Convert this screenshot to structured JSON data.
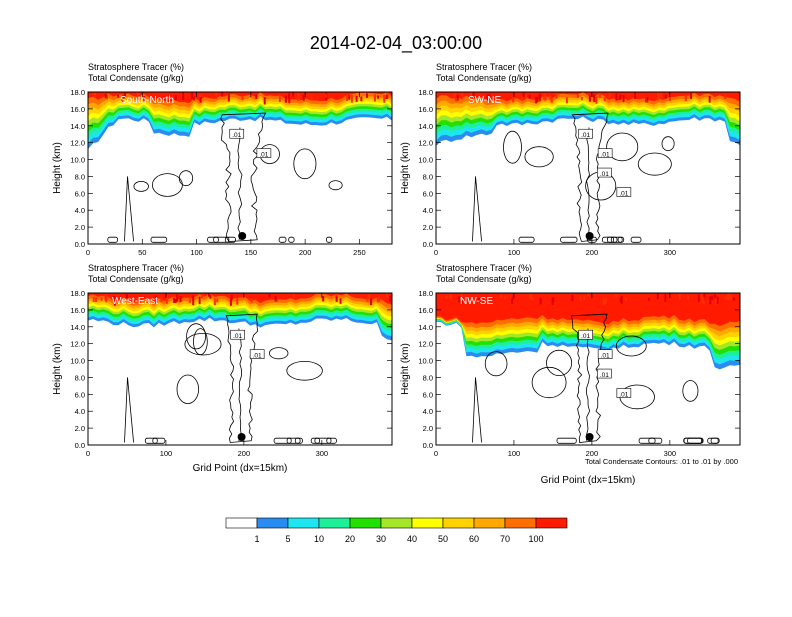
{
  "page": {
    "title": "2014-02-04_03:00:00",
    "footnote": "Total Condensate Contours: .01 to .01 by .000"
  },
  "colors": {
    "levels": [
      "#ffffff",
      "#2a8cf0",
      "#1ee6f0",
      "#1ef09a",
      "#22e000",
      "#a6e628",
      "#ffff00",
      "#ffd200",
      "#ffa800",
      "#ff6e00",
      "#ff1a00"
    ],
    "contour": "#000000",
    "frame": "#000000"
  },
  "chart_data": [
    {
      "type": "heatmap",
      "panel_label": "South-North",
      "subtitle1": "Stratosphere Tracer   (%)",
      "subtitle2": "Total Condensate   (g/kg)",
      "ylabel": "Height (km)",
      "xlabel": "",
      "xlim": [
        0,
        280
      ],
      "ylim": [
        0,
        18
      ],
      "xticks": [
        0,
        50,
        100,
        150,
        200,
        250
      ],
      "yticks": [
        "0.0",
        "2.0",
        "4.0",
        "6.0",
        "8.0",
        "10.0",
        "12.0",
        "14.0",
        "16.0",
        "18.0"
      ],
      "marker_x": 142,
      "contour_labels": [
        ".01",
        ".01"
      ],
      "approx_tracer_base_km": 14.5,
      "approx_tracer_top_km": 18
    },
    {
      "type": "heatmap",
      "panel_label": "SW-NE",
      "subtitle1": "Stratosphere Tracer   (%)",
      "subtitle2": "Total Condensate   (g/kg)",
      "ylabel": "Height (km)",
      "xlabel": "",
      "xlim": [
        0,
        390
      ],
      "ylim": [
        0,
        18
      ],
      "xticks": [
        0,
        100,
        200,
        300
      ],
      "yticks": [
        "0.0",
        "2.0",
        "4.0",
        "6.0",
        "8.0",
        "10.0",
        "12.0",
        "14.0",
        "16.0",
        "18.0"
      ],
      "marker_x": 197,
      "contour_labels": [
        ".01",
        ".01",
        ".01",
        ".01"
      ],
      "approx_tracer_base_km": 14.5,
      "approx_tracer_top_km": 18
    },
    {
      "type": "heatmap",
      "panel_label": "West-East",
      "subtitle1": "Stratosphere Tracer   (%)",
      "subtitle2": "Total Condensate   (g/kg)",
      "ylabel": "Height (km)",
      "xlabel": "Grid Point (dx=15km)",
      "xlim": [
        0,
        390
      ],
      "ylim": [
        0,
        18
      ],
      "xticks": [
        0,
        100,
        200,
        300
      ],
      "yticks": [
        "0.0",
        "2.0",
        "4.0",
        "6.0",
        "8.0",
        "10.0",
        "12.0",
        "14.0",
        "16.0",
        "18.0"
      ],
      "marker_x": 197,
      "contour_labels": [
        ".01",
        ".01"
      ],
      "approx_tracer_base_km": 14.5,
      "approx_tracer_top_km": 18
    },
    {
      "type": "heatmap",
      "panel_label": "NW-SE",
      "subtitle1": "Stratosphere Tracer   (%)",
      "subtitle2": "Total Condensate   (g/kg)",
      "ylabel": "Height (km)",
      "xlabel": "Grid Point (dx=15km)",
      "xlim": [
        0,
        390
      ],
      "ylim": [
        0,
        18
      ],
      "xticks": [
        0,
        100,
        200,
        300
      ],
      "yticks": [
        "0.0",
        "2.0",
        "4.0",
        "6.0",
        "8.0",
        "10.0",
        "12.0",
        "14.0",
        "16.0",
        "18.0"
      ],
      "marker_x": 197,
      "contour_labels": [
        ".01",
        ".01",
        ".01",
        ".01"
      ],
      "approx_tracer_base_km": 12.0,
      "approx_tracer_top_km": 18
    }
  ],
  "colorbar": {
    "labels": [
      "1",
      "5",
      "10",
      "20",
      "30",
      "40",
      "50",
      "60",
      "70",
      "100"
    ]
  }
}
